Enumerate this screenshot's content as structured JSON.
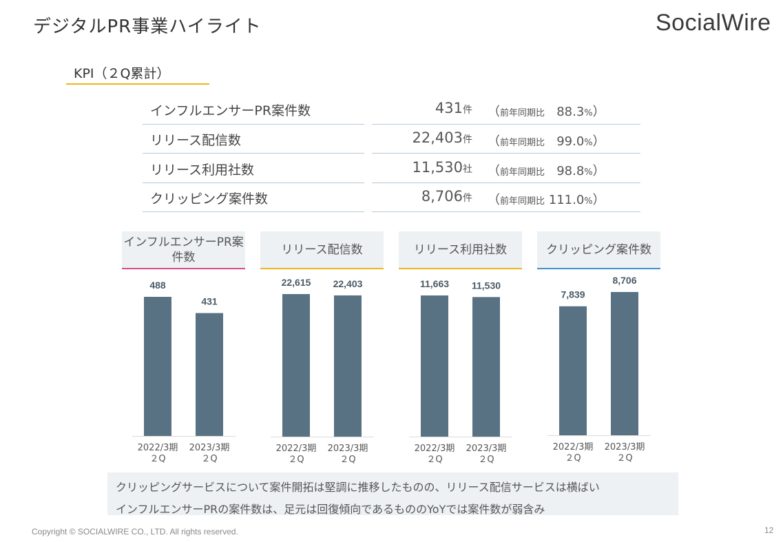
{
  "header": {
    "title": "デジタルPR事業ハイライト",
    "logo_text": "SocialWire"
  },
  "kpi": {
    "heading": "KPI（２Q累計）",
    "rows": [
      {
        "label": "インフルエンサーPR案件数",
        "value": "431",
        "unit": "件",
        "yoy_label": "前年同期比",
        "yoy_open": "（",
        "yoy_value": "88.3",
        "yoy_unit": "%",
        "yoy_close": "）"
      },
      {
        "label": "リリース配信数",
        "value": "22,403",
        "unit": "件",
        "yoy_label": "前年同期比",
        "yoy_open": "（",
        "yoy_value": "99.0",
        "yoy_unit": "%",
        "yoy_close": "）"
      },
      {
        "label": "リリース利用社数",
        "value": "11,530",
        "unit": "社",
        "yoy_label": "前年同期比",
        "yoy_open": "（",
        "yoy_value": "98.8",
        "yoy_unit": "%",
        "yoy_close": "）"
      },
      {
        "label": "クリッピング案件数",
        "value": "8,706",
        "unit": "件",
        "yoy_label": "前年同期比",
        "yoy_open": "（",
        "yoy_value": "111.0",
        "yoy_unit": "%",
        "yoy_close": "）"
      }
    ]
  },
  "colors": {
    "bar": "#587183",
    "accent_yellow": "#f0b419",
    "accent_pink": "#e0468b",
    "accent_blue": "#3d8fd1",
    "header_bg": "#edf1f4"
  },
  "chart_data": [
    {
      "type": "bar",
      "title": "インフルエンサーPR案件数",
      "categories": [
        "2022/3期 2Q",
        "2023/3期 2Q"
      ],
      "category_lines": [
        [
          "2022/3期",
          "２Q"
        ],
        [
          "2023/3期",
          "２Q"
        ]
      ],
      "values": [
        488,
        431
      ],
      "labels": [
        "488",
        "431"
      ]
    },
    {
      "type": "bar",
      "title": "リリース配信数",
      "categories": [
        "2022/3期 2Q",
        "2023/3期 2Q"
      ],
      "category_lines": [
        [
          "2022/3期",
          "２Q"
        ],
        [
          "2023/3期",
          "２Q"
        ]
      ],
      "values": [
        22615,
        22403
      ],
      "labels": [
        "22,615",
        "22,403"
      ]
    },
    {
      "type": "bar",
      "title": "リリース利用社数",
      "categories": [
        "2022/3期 2Q",
        "2023/3期 2Q"
      ],
      "category_lines": [
        [
          "2022/3期",
          "２Q"
        ],
        [
          "2023/3期",
          "２Q"
        ]
      ],
      "values": [
        11663,
        11530
      ],
      "labels": [
        "11,663",
        "11,530"
      ]
    },
    {
      "type": "bar",
      "title": "クリッピング案件数",
      "categories": [
        "2022/3期 2Q",
        "2023/3期 2Q"
      ],
      "category_lines": [
        [
          "2022/3期",
          "２Q"
        ],
        [
          "2023/3期",
          "２Q"
        ]
      ],
      "values": [
        7839,
        8706
      ],
      "labels": [
        "7,839",
        "8,706"
      ]
    }
  ],
  "comments": [
    "クリッピングサービスについて案件開拓は堅調に推移したものの、リリース配信サービスは横ばい",
    "インフルエンサーPRの案件数は、足元は回復傾向であるもののYoYでは案件数が弱含み"
  ],
  "footer": {
    "copyright": "Copyright © SOCIALWIRE CO., LTD. All rights reserved.",
    "page_number": "12"
  }
}
